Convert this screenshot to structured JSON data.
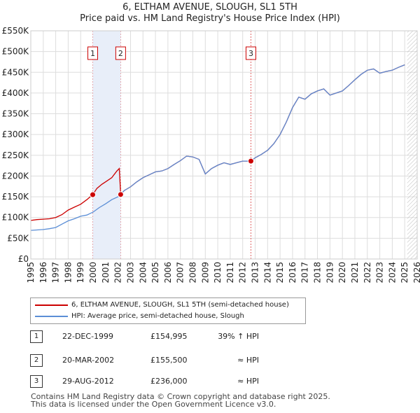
{
  "title_line1": "6, ELTHAM AVENUE, SLOUGH, SL1 5TH",
  "title_line2": "Price paid vs. HM Land Registry's House Price Index (HPI)",
  "chart_data": {
    "type": "line",
    "title": "6, ELTHAM AVENUE, SLOUGH, SL1 5TH — Price paid vs. HM Land Registry's House Price Index (HPI)",
    "xlim": [
      1995,
      2026
    ],
    "ylim": [
      0,
      550000
    ],
    "y_ticks": [
      {
        "value": 0,
        "label": "£0"
      },
      {
        "value": 50000,
        "label": "£50K"
      },
      {
        "value": 100000,
        "label": "£100K"
      },
      {
        "value": 150000,
        "label": "£150K"
      },
      {
        "value": 200000,
        "label": "£200K"
      },
      {
        "value": 250000,
        "label": "£250K"
      },
      {
        "value": 300000,
        "label": "£300K"
      },
      {
        "value": 350000,
        "label": "£350K"
      },
      {
        "value": 400000,
        "label": "£400K"
      },
      {
        "value": 450000,
        "label": "£450K"
      },
      {
        "value": 500000,
        "label": "£500K"
      },
      {
        "value": 550000,
        "label": "£550K"
      }
    ],
    "x_ticks": [
      "1995",
      "1996",
      "1997",
      "1998",
      "1999",
      "2000",
      "2001",
      "2002",
      "2003",
      "2004",
      "2005",
      "2006",
      "2007",
      "2008",
      "2009",
      "2010",
      "2011",
      "2012",
      "2013",
      "2014",
      "2015",
      "2016",
      "2017",
      "2018",
      "2019",
      "2020",
      "2021",
      "2022",
      "2023",
      "2024",
      "2025",
      "2026"
    ],
    "grid": true,
    "shaded_periods": [
      [
        1999.97,
        2002.21
      ]
    ],
    "future_hatch_from": 2025.2,
    "series": [
      {
        "name": "6, ELTHAM AVENUE, SLOUGH, SL1 5TH (semi-detached house)",
        "color": "#cc0000",
        "points": [
          [
            1995.0,
            93000
          ],
          [
            1995.5,
            95000
          ],
          [
            1996.0,
            96000
          ],
          [
            1996.5,
            97000
          ],
          [
            1997.0,
            100000
          ],
          [
            1997.5,
            107000
          ],
          [
            1998.0,
            118000
          ],
          [
            1998.5,
            125000
          ],
          [
            1999.0,
            132000
          ],
          [
            1999.5,
            143000
          ],
          [
            1999.97,
            154995
          ],
          [
            2000.3,
            170000
          ],
          [
            2000.7,
            180000
          ],
          [
            2001.0,
            186000
          ],
          [
            2001.5,
            196000
          ],
          [
            2001.9,
            212000
          ],
          [
            2002.1,
            218000
          ],
          [
            2002.21,
            155500
          ],
          [
            2002.5,
            165000
          ],
          [
            2003.0,
            174000
          ],
          [
            2003.5,
            186000
          ],
          [
            2004.0,
            196000
          ],
          [
            2004.5,
            203000
          ],
          [
            2005.0,
            210000
          ],
          [
            2005.5,
            212000
          ],
          [
            2006.0,
            218000
          ],
          [
            2006.5,
            228000
          ],
          [
            2007.0,
            237000
          ],
          [
            2007.5,
            248000
          ],
          [
            2008.0,
            246000
          ],
          [
            2008.5,
            240000
          ],
          [
            2009.0,
            205000
          ],
          [
            2009.5,
            218000
          ],
          [
            2010.0,
            226000
          ],
          [
            2010.5,
            232000
          ],
          [
            2011.0,
            228000
          ],
          [
            2011.5,
            232000
          ],
          [
            2012.0,
            236000
          ],
          [
            2012.66,
            236000
          ],
          [
            2013.0,
            244000
          ],
          [
            2013.5,
            252000
          ],
          [
            2014.0,
            262000
          ],
          [
            2014.5,
            278000
          ],
          [
            2015.0,
            300000
          ],
          [
            2015.5,
            330000
          ],
          [
            2016.0,
            365000
          ],
          [
            2016.5,
            390000
          ],
          [
            2017.0,
            385000
          ],
          [
            2017.5,
            398000
          ],
          [
            2018.0,
            405000
          ],
          [
            2018.5,
            410000
          ],
          [
            2019.0,
            395000
          ],
          [
            2019.5,
            400000
          ],
          [
            2020.0,
            405000
          ],
          [
            2020.5,
            418000
          ],
          [
            2021.0,
            432000
          ],
          [
            2021.5,
            445000
          ],
          [
            2022.0,
            455000
          ],
          [
            2022.5,
            458000
          ],
          [
            2023.0,
            448000
          ],
          [
            2023.5,
            452000
          ],
          [
            2024.0,
            455000
          ],
          [
            2024.5,
            462000
          ],
          [
            2025.0,
            468000
          ]
        ]
      },
      {
        "name": "HPI: Average price, semi-detached house, Slough",
        "color": "#5b8ed6",
        "points": [
          [
            1995.0,
            69000
          ],
          [
            1995.5,
            70000
          ],
          [
            1996.0,
            71000
          ],
          [
            1996.5,
            73000
          ],
          [
            1997.0,
            76000
          ],
          [
            1997.5,
            84000
          ],
          [
            1998.0,
            92000
          ],
          [
            1998.5,
            97000
          ],
          [
            1999.0,
            103000
          ],
          [
            1999.5,
            106000
          ],
          [
            2000.0,
            113000
          ],
          [
            2000.5,
            124000
          ],
          [
            2001.0,
            133000
          ],
          [
            2001.5,
            143000
          ],
          [
            2002.0,
            150000
          ],
          [
            2002.21,
            155500
          ],
          [
            2002.5,
            165000
          ],
          [
            2003.0,
            174000
          ],
          [
            2003.5,
            186000
          ],
          [
            2004.0,
            196000
          ],
          [
            2004.5,
            203000
          ],
          [
            2005.0,
            210000
          ],
          [
            2005.5,
            212000
          ],
          [
            2006.0,
            218000
          ],
          [
            2006.5,
            228000
          ],
          [
            2007.0,
            237000
          ],
          [
            2007.5,
            248000
          ],
          [
            2008.0,
            246000
          ],
          [
            2008.5,
            240000
          ],
          [
            2009.0,
            205000
          ],
          [
            2009.5,
            218000
          ],
          [
            2010.0,
            226000
          ],
          [
            2010.5,
            232000
          ],
          [
            2011.0,
            228000
          ],
          [
            2011.5,
            232000
          ],
          [
            2012.0,
            236000
          ],
          [
            2012.66,
            236000
          ],
          [
            2013.0,
            244000
          ],
          [
            2013.5,
            252000
          ],
          [
            2014.0,
            262000
          ],
          [
            2014.5,
            278000
          ],
          [
            2015.0,
            300000
          ],
          [
            2015.5,
            330000
          ],
          [
            2016.0,
            365000
          ],
          [
            2016.5,
            390000
          ],
          [
            2017.0,
            385000
          ],
          [
            2017.5,
            398000
          ],
          [
            2018.0,
            405000
          ],
          [
            2018.5,
            410000
          ],
          [
            2019.0,
            395000
          ],
          [
            2019.5,
            400000
          ],
          [
            2020.0,
            405000
          ],
          [
            2020.5,
            418000
          ],
          [
            2021.0,
            432000
          ],
          [
            2021.5,
            445000
          ],
          [
            2022.0,
            455000
          ],
          [
            2022.5,
            458000
          ],
          [
            2023.0,
            448000
          ],
          [
            2023.5,
            452000
          ],
          [
            2024.0,
            455000
          ],
          [
            2024.5,
            462000
          ],
          [
            2025.0,
            468000
          ]
        ]
      }
    ],
    "annotations": [
      {
        "label": "1",
        "x": 1999.97,
        "y": 154995
      },
      {
        "label": "2",
        "x": 2002.21,
        "y": 155500
      },
      {
        "label": "3",
        "x": 2012.66,
        "y": 236000
      }
    ]
  },
  "legend": {
    "property_label": "6, ELTHAM AVENUE, SLOUGH, SL1 5TH (semi-detached house)",
    "hpi_label": "HPI: Average price, semi-detached house, Slough",
    "property_color": "#cc0000",
    "hpi_color": "#5b8ed6"
  },
  "sales": [
    {
      "num": "1",
      "date": "22-DEC-1999",
      "price": "£154,995",
      "hpi": "39% ↑ HPI"
    },
    {
      "num": "2",
      "date": "20-MAR-2002",
      "price": "£155,500",
      "hpi": "≈ HPI"
    },
    {
      "num": "3",
      "date": "29-AUG-2012",
      "price": "£236,000",
      "hpi": "≈ HPI"
    }
  ],
  "footer_line1": "Contains HM Land Registry data © Crown copyright and database right 2025.",
  "footer_line2": "This data is licensed under the Open Government Licence v3.0."
}
